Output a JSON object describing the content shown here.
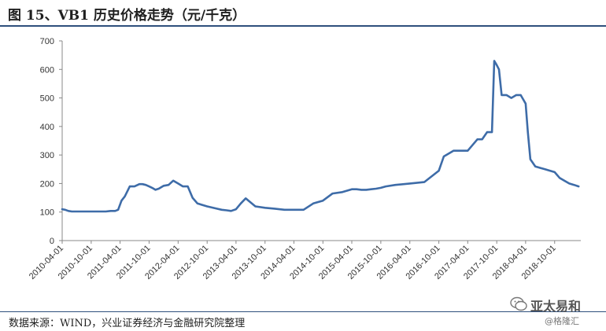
{
  "header": {
    "title": "图 15、VB1 历史价格走势（元/千克）"
  },
  "footer": {
    "source": "数据来源：WIND，兴业证券经济与金融研究院整理"
  },
  "watermark": {
    "main": "亚太易和",
    "sub": "@格隆汇"
  },
  "colors": {
    "line": "#3e6ca8",
    "axis": "#888888",
    "rule": "#2e4f7c"
  },
  "chart_data": {
    "type": "line",
    "title": "图 15、VB1 历史价格走势（元/千克）",
    "xlabel": "",
    "ylabel": "",
    "ylim": [
      0,
      700
    ],
    "yticks": [
      0,
      100,
      200,
      300,
      400,
      500,
      600,
      700
    ],
    "yticks_labels": [
      "0",
      "100",
      "200",
      "300",
      "400",
      "500",
      "600",
      "700"
    ],
    "grid": false,
    "legend": "none",
    "xticks": [
      "2010-04-01",
      "2010-10-01",
      "2011-04-01",
      "2011-10-01",
      "2012-04-01",
      "2012-10-01",
      "2013-04-01",
      "2013-10-01",
      "2014-04-01",
      "2014-10-01",
      "2015-04-01",
      "2015-10-01",
      "2016-04-01",
      "2016-10-01",
      "2017-04-01",
      "2017-10-01",
      "2018-04-01",
      "2018-10-01"
    ],
    "x_range": [
      "2010-04-01",
      "2019-03-15"
    ],
    "series": [
      {
        "name": "",
        "x": [
          "2010-04-01",
          "2010-04-20",
          "2010-05-10",
          "2010-06-01",
          "2010-08-01",
          "2010-10-01",
          "2011-01-01",
          "2011-02-01",
          "2011-03-01",
          "2011-03-20",
          "2011-04-10",
          "2011-05-01",
          "2011-06-01",
          "2011-07-01",
          "2011-08-01",
          "2011-08-20",
          "2011-09-10",
          "2011-10-01",
          "2011-10-20",
          "2011-11-10",
          "2011-12-01",
          "2012-01-01",
          "2012-02-01",
          "2012-03-01",
          "2012-04-01",
          "2012-05-01",
          "2012-06-01",
          "2012-07-01",
          "2012-08-01",
          "2012-10-01",
          "2012-12-01",
          "2013-01-01",
          "2013-02-01",
          "2013-03-01",
          "2013-04-01",
          "2013-05-01",
          "2013-06-01",
          "2013-08-01",
          "2013-10-01",
          "2013-12-01",
          "2014-02-01",
          "2014-03-01",
          "2014-04-01",
          "2014-05-01",
          "2014-06-01",
          "2014-08-01",
          "2014-10-01",
          "2014-12-01",
          "2015-02-01",
          "2015-04-01",
          "2015-05-01",
          "2015-06-01",
          "2015-07-01",
          "2015-08-01",
          "2015-09-01",
          "2015-10-01",
          "2015-11-01",
          "2016-01-01",
          "2016-04-01",
          "2016-07-01",
          "2016-10-01",
          "2016-11-01",
          "2017-01-01",
          "2017-03-01",
          "2017-04-01",
          "2017-06-01",
          "2017-07-01",
          "2017-08-01",
          "2017-08-10",
          "2017-08-20",
          "2017-09-01",
          "2017-09-15",
          "2017-10-01",
          "2017-10-15",
          "2017-11-01",
          "2017-12-01",
          "2018-01-01",
          "2018-02-01",
          "2018-03-01",
          "2018-04-01",
          "2018-04-15",
          "2018-05-01",
          "2018-06-01",
          "2018-07-01",
          "2018-08-01",
          "2018-09-01",
          "2018-10-01",
          "2018-11-01",
          "2018-12-01",
          "2019-01-01",
          "2019-02-01",
          "2019-03-01"
        ],
        "y": [
          110,
          108,
          104,
          102,
          102,
          102,
          102,
          104,
          104,
          108,
          140,
          155,
          190,
          190,
          198,
          198,
          195,
          190,
          185,
          178,
          182,
          192,
          195,
          210,
          200,
          190,
          190,
          150,
          130,
          120,
          112,
          108,
          106,
          104,
          110,
          130,
          148,
          120,
          115,
          112,
          108,
          108,
          108,
          108,
          108,
          130,
          140,
          165,
          170,
          180,
          180,
          178,
          178,
          180,
          182,
          185,
          190,
          195,
          200,
          205,
          245,
          295,
          315,
          315,
          315,
          355,
          355,
          380,
          380,
          380,
          380,
          630,
          615,
          600,
          510,
          510,
          500,
          510,
          510,
          480,
          380,
          285,
          260,
          255,
          250,
          245,
          240,
          220,
          210,
          200,
          195,
          190
        ]
      }
    ]
  }
}
